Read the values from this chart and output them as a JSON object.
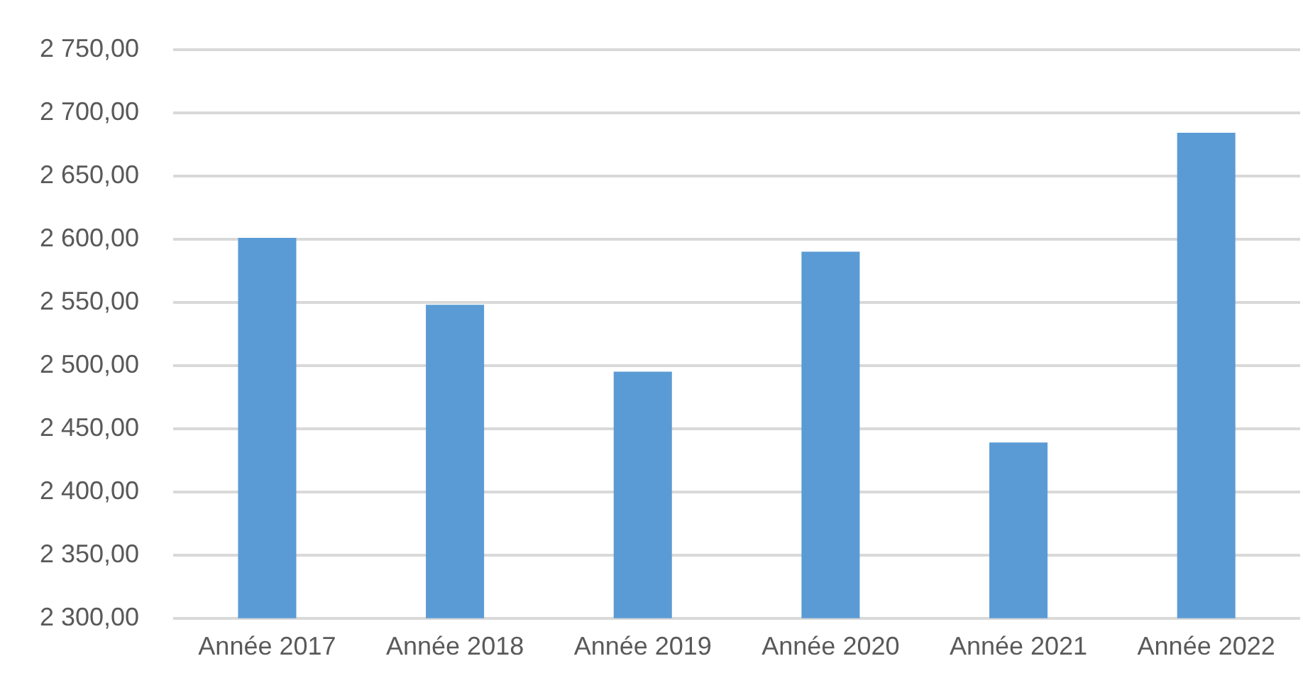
{
  "chart_data": {
    "type": "bar",
    "categories": [
      "Année 2017",
      "Année 2018",
      "Année 2019",
      "Année 2020",
      "Année 2021",
      "Année 2022"
    ],
    "values": [
      2601,
      2548,
      2495,
      2590,
      2439,
      2684
    ],
    "color": "#5b9bd5",
    "ylim": [
      2300,
      2750
    ],
    "yticks": [
      {
        "value": 2300,
        "label": "2 300,00"
      },
      {
        "value": 2350,
        "label": "2 350,00"
      },
      {
        "value": 2400,
        "label": "2 400,00"
      },
      {
        "value": 2450,
        "label": "2 450,00"
      },
      {
        "value": 2500,
        "label": "2 500,00"
      },
      {
        "value": 2550,
        "label": "2 550,00"
      },
      {
        "value": 2600,
        "label": "2 600,00"
      },
      {
        "value": 2650,
        "label": "2 650,00"
      },
      {
        "value": 2700,
        "label": "2 700,00"
      },
      {
        "value": 2750,
        "label": "2 750,00"
      }
    ],
    "grid": "y"
  }
}
